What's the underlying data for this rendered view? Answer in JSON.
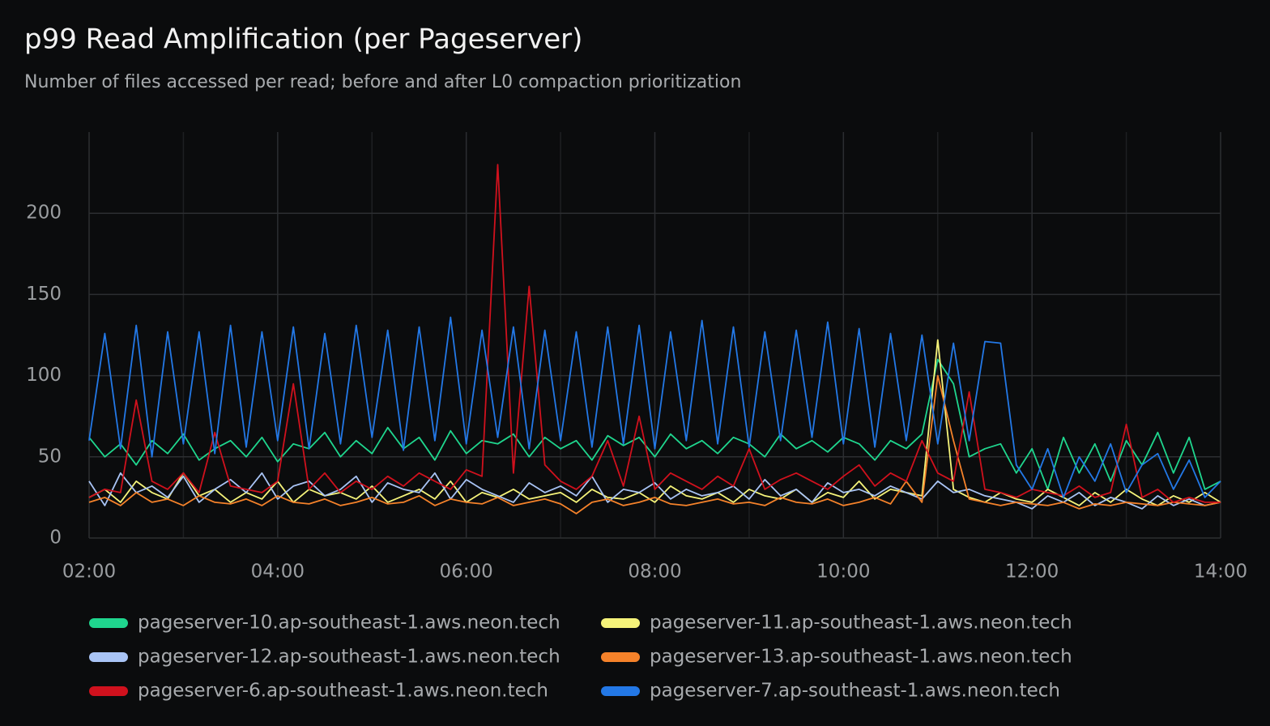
{
  "chart_data": {
    "type": "line",
    "title": "p99 Read Amplification (per Pageserver)",
    "subtitle": "Number of files accessed per read; before and after L0 compaction prioritization",
    "x": [
      "02:00",
      "02:10",
      "02:20",
      "02:30",
      "02:40",
      "02:50",
      "03:00",
      "03:10",
      "03:20",
      "03:30",
      "03:40",
      "03:50",
      "04:00",
      "04:10",
      "04:20",
      "04:30",
      "04:40",
      "04:50",
      "05:00",
      "05:10",
      "05:20",
      "05:30",
      "05:40",
      "05:50",
      "06:00",
      "06:10",
      "06:20",
      "06:30",
      "06:40",
      "06:50",
      "07:00",
      "07:10",
      "07:20",
      "07:30",
      "07:40",
      "07:50",
      "08:00",
      "08:10",
      "08:20",
      "08:30",
      "08:40",
      "08:50",
      "09:00",
      "09:10",
      "09:20",
      "09:30",
      "09:40",
      "09:50",
      "10:00",
      "10:10",
      "10:20",
      "10:30",
      "10:40",
      "10:50",
      "11:00",
      "11:10",
      "11:20",
      "11:30",
      "11:40",
      "11:50",
      "12:00",
      "12:10",
      "12:20",
      "12:30",
      "12:40",
      "12:50",
      "13:00",
      "13:10",
      "13:20",
      "13:30",
      "13:40",
      "13:50",
      "14:00"
    ],
    "xlim": [
      "02:00",
      "14:00"
    ],
    "xticks": [
      "02:00",
      "04:00",
      "06:00",
      "08:00",
      "10:00",
      "12:00",
      "14:00"
    ],
    "xminorticks": [
      "03:00",
      "05:00",
      "07:00",
      "09:00",
      "11:00",
      "13:00"
    ],
    "ylim": [
      0,
      250
    ],
    "yticks": [
      0,
      50,
      100,
      150,
      200
    ],
    "grid": true,
    "series": [
      {
        "name": "pageserver-10.ap-southeast-1.aws.neon.tech",
        "color": "#1fd68e",
        "values": [
          62,
          50,
          58,
          45,
          60,
          52,
          64,
          48,
          55,
          60,
          50,
          62,
          47,
          58,
          55,
          65,
          50,
          60,
          52,
          68,
          55,
          62,
          48,
          66,
          52,
          60,
          58,
          64,
          50,
          62,
          55,
          60,
          48,
          63,
          57,
          62,
          50,
          64,
          55,
          60,
          52,
          62,
          58,
          50,
          64,
          55,
          60,
          53,
          62,
          58,
          48,
          60,
          55,
          64,
          110,
          95,
          50,
          55,
          58,
          40,
          55,
          30,
          62,
          40,
          58,
          35,
          60,
          45,
          65,
          40,
          62,
          30,
          35
        ]
      },
      {
        "name": "pageserver-11.ap-southeast-1.aws.neon.tech",
        "color": "#f5f37a",
        "values": [
          25,
          30,
          22,
          35,
          28,
          24,
          40,
          26,
          30,
          22,
          28,
          24,
          35,
          22,
          30,
          26,
          28,
          24,
          32,
          22,
          26,
          30,
          24,
          35,
          22,
          28,
          25,
          30,
          24,
          26,
          28,
          22,
          30,
          25,
          24,
          28,
          22,
          32,
          26,
          24,
          28,
          22,
          30,
          26,
          24,
          30,
          22,
          28,
          25,
          35,
          24,
          30,
          28,
          26,
          122,
          30,
          25,
          22,
          28,
          24,
          22,
          30,
          25,
          20,
          28,
          22,
          30,
          24,
          20,
          26,
          22,
          28,
          22
        ]
      },
      {
        "name": "pageserver-12.ap-southeast-1.aws.neon.tech",
        "color": "#a9c4f5",
        "values": [
          35,
          20,
          40,
          28,
          32,
          25,
          38,
          22,
          30,
          36,
          28,
          40,
          24,
          32,
          35,
          26,
          30,
          38,
          22,
          34,
          30,
          28,
          40,
          24,
          36,
          30,
          26,
          22,
          34,
          28,
          32,
          26,
          38,
          22,
          30,
          28,
          34,
          24,
          30,
          26,
          28,
          32,
          24,
          36,
          26,
          30,
          22,
          34,
          28,
          30,
          26,
          32,
          28,
          24,
          35,
          28,
          30,
          26,
          24,
          22,
          18,
          26,
          22,
          28,
          20,
          25,
          22,
          18,
          26,
          20,
          24,
          20,
          22
        ]
      },
      {
        "name": "pageserver-13.ap-southeast-1.aws.neon.tech",
        "color": "#f5822a",
        "values": [
          22,
          25,
          20,
          28,
          22,
          24,
          20,
          26,
          22,
          21,
          24,
          20,
          26,
          22,
          21,
          24,
          20,
          22,
          25,
          21,
          22,
          26,
          20,
          24,
          22,
          21,
          25,
          20,
          22,
          24,
          21,
          15,
          22,
          24,
          20,
          22,
          25,
          21,
          20,
          22,
          24,
          21,
          22,
          20,
          25,
          22,
          21,
          24,
          20,
          22,
          25,
          21,
          35,
          22,
          100,
          60,
          24,
          22,
          20,
          22,
          21,
          20,
          22,
          18,
          21,
          20,
          22,
          21,
          20,
          22,
          21,
          20,
          22
        ]
      },
      {
        "name": "pageserver-6.ap-southeast-1.aws.neon.tech",
        "color": "#d0111d",
        "values": [
          25,
          30,
          28,
          85,
          35,
          30,
          40,
          28,
          65,
          32,
          30,
          28,
          35,
          95,
          30,
          40,
          28,
          35,
          30,
          38,
          32,
          40,
          35,
          30,
          42,
          38,
          230,
          40,
          155,
          45,
          35,
          30,
          38,
          60,
          32,
          75,
          30,
          40,
          35,
          30,
          38,
          32,
          55,
          30,
          36,
          40,
          35,
          30,
          38,
          45,
          32,
          40,
          35,
          60,
          40,
          35,
          90,
          30,
          28,
          25,
          30,
          28,
          26,
          32,
          25,
          28,
          70,
          25,
          30,
          22,
          25,
          22,
          22
        ]
      },
      {
        "name": "pageserver-7.ap-southeast-1.aws.neon.tech",
        "color": "#2378e6",
        "values": [
          60,
          126,
          55,
          131,
          50,
          127,
          58,
          127,
          52,
          131,
          56,
          127,
          60,
          130,
          55,
          126,
          58,
          131,
          62,
          128,
          54,
          130,
          60,
          136,
          58,
          128,
          62,
          130,
          55,
          128,
          60,
          127,
          56,
          130,
          58,
          131,
          55,
          127,
          60,
          134,
          58,
          130,
          56,
          127,
          60,
          128,
          62,
          133,
          58,
          129,
          56,
          126,
          60,
          125,
          58,
          120,
          60,
          121,
          120,
          45,
          30,
          55,
          25,
          50,
          35,
          58,
          28,
          45,
          52,
          30,
          48,
          25,
          35
        ]
      }
    ]
  }
}
